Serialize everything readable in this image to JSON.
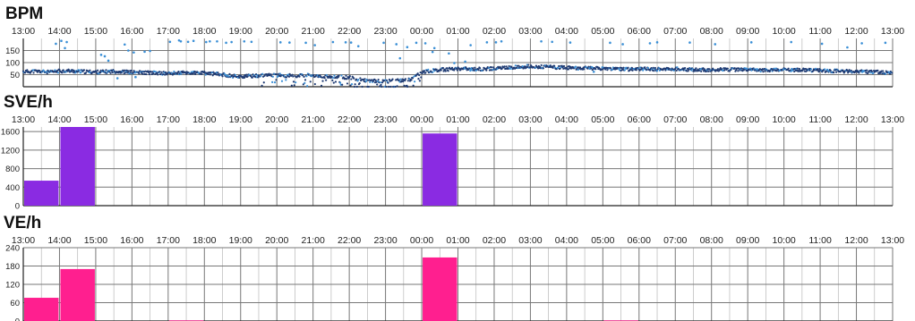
{
  "time_labels": [
    "13:00",
    "14:00",
    "15:00",
    "16:00",
    "17:00",
    "18:00",
    "19:00",
    "20:00",
    "21:00",
    "22:00",
    "23:00",
    "00:00",
    "01:00",
    "02:00",
    "03:00",
    "04:00",
    "05:00",
    "06:00",
    "07:00",
    "08:00",
    "09:00",
    "10:00",
    "11:00",
    "12:00",
    "13:00"
  ],
  "colors": {
    "bpm_main": "#1f3b73",
    "bpm_scatter": "#3a8fd6",
    "sve_bar": "#8a2be2",
    "ve_bar": "#ff1f8f",
    "grid_major": "#777777",
    "grid_minor": "#b8b8b8",
    "axis": "#222222"
  },
  "chart_data": [
    {
      "type": "scatter",
      "title": "BPM",
      "ylim": [
        0,
        200
      ],
      "yticks": [
        50,
        100,
        150
      ],
      "grid": true,
      "series": [
        {
          "x": [
            0,
            0.25,
            0.5,
            0.75,
            1,
            1.25,
            1.5,
            1.75,
            2,
            2.25,
            2.5,
            2.75,
            3,
            3.25,
            3.5,
            3.75,
            4,
            4.25,
            4.5,
            4.75,
            5,
            5.25,
            5.5,
            5.75,
            6,
            6.25,
            6.5,
            6.75,
            7,
            7.25,
            7.5,
            7.75,
            8,
            8.25,
            8.5,
            8.75,
            9,
            9.25,
            9.5,
            9.75,
            10,
            10.25,
            10.5,
            10.75,
            11,
            11.25,
            11.5,
            11.75,
            12,
            12.25,
            12.5,
            12.75,
            13,
            13.25,
            13.5,
            13.75,
            14,
            14.25,
            14.5,
            14.75,
            15,
            15.25,
            15.5,
            15.75,
            16,
            16.25,
            16.5,
            16.75,
            17,
            17.25,
            17.5,
            17.75,
            18,
            18.25,
            18.5,
            18.75,
            19,
            19.25,
            19.5,
            19.75,
            20,
            20.25,
            20.5,
            20.75,
            21,
            21.25,
            21.5,
            21.75,
            22,
            22.25,
            22.5,
            22.75,
            23,
            23.25,
            23.5,
            23.75,
            24
          ],
          "values": [
            62,
            64,
            63,
            60,
            65,
            66,
            63,
            62,
            61,
            62,
            64,
            62,
            60,
            59,
            58,
            56,
            55,
            57,
            58,
            57,
            56,
            54,
            50,
            45,
            42,
            44,
            46,
            47,
            48,
            46,
            45,
            48,
            46,
            44,
            42,
            40,
            38,
            30,
            26,
            24,
            22,
            25,
            28,
            32,
            62,
            66,
            70,
            72,
            75,
            74,
            73,
            74,
            76,
            78,
            80,
            82,
            84,
            83,
            82,
            80,
            79,
            78,
            77,
            76,
            75,
            74,
            73,
            72,
            74,
            73,
            72,
            73,
            74,
            72,
            71,
            70,
            70,
            71,
            72,
            70,
            70,
            69,
            68,
            70,
            71,
            70,
            69,
            68,
            67,
            66,
            65,
            64,
            63,
            62,
            61,
            60,
            58
          ]
        },
        {
          "name": "",
          "x": [
            0.9,
            1.05,
            1.2,
            1.15,
            2.8,
            2.9,
            3.05,
            3.35,
            3.5,
            4.05,
            4.3,
            4.35,
            4.55,
            4.7,
            5.05,
            5.15,
            5.35,
            5.6,
            5.75,
            6.1,
            6.3,
            7.1,
            7.35,
            7.8,
            8.05,
            8.55,
            8.9,
            9.05,
            9.25,
            9.95,
            10.3,
            10.6,
            10.85,
            11.1,
            11.35,
            11.75,
            12.35,
            12.8,
            13.05,
            13.2,
            14.3,
            14.6,
            15.1,
            16.2,
            16.55,
            17.3,
            17.5,
            18.4,
            19.1,
            20.1,
            21.2,
            22.05,
            22.75,
            23.15,
            23.8,
            2.15,
            2.25,
            2.35,
            2.6,
            3.1,
            10.4,
            11.3,
            11.9,
            12.2,
            15.75
          ],
          "values": [
            178,
            190,
            185,
            160,
            175,
            150,
            142,
            145,
            148,
            186,
            192,
            188,
            186,
            190,
            185,
            188,
            188,
            182,
            185,
            188,
            186,
            184,
            183,
            182,
            172,
            185,
            184,
            183,
            168,
            182,
            176,
            164,
            182,
            180,
            160,
            138,
            172,
            184,
            184,
            188,
            188,
            186,
            183,
            182,
            176,
            180,
            184,
            183,
            176,
            184,
            185,
            178,
            163,
            180,
            182,
            132,
            126,
            108,
            35,
            40,
            118,
            144,
            98,
            104,
            62
          ]
        }
      ]
    },
    {
      "type": "bar",
      "title": "SVE/h",
      "ylim": [
        0,
        1700
      ],
      "yticks": [
        0,
        400,
        800,
        1200,
        1600
      ],
      "grid": true,
      "x": [
        0,
        1,
        11
      ],
      "values": [
        540,
        1700,
        1560
      ]
    },
    {
      "type": "bar",
      "title": "VE/h",
      "ylim": [
        0,
        240
      ],
      "yticks": [
        0,
        60,
        120,
        180,
        240
      ],
      "grid": true,
      "x": [
        0,
        1,
        4,
        11,
        16
      ],
      "values": [
        76,
        170,
        2,
        208,
        2
      ]
    }
  ]
}
